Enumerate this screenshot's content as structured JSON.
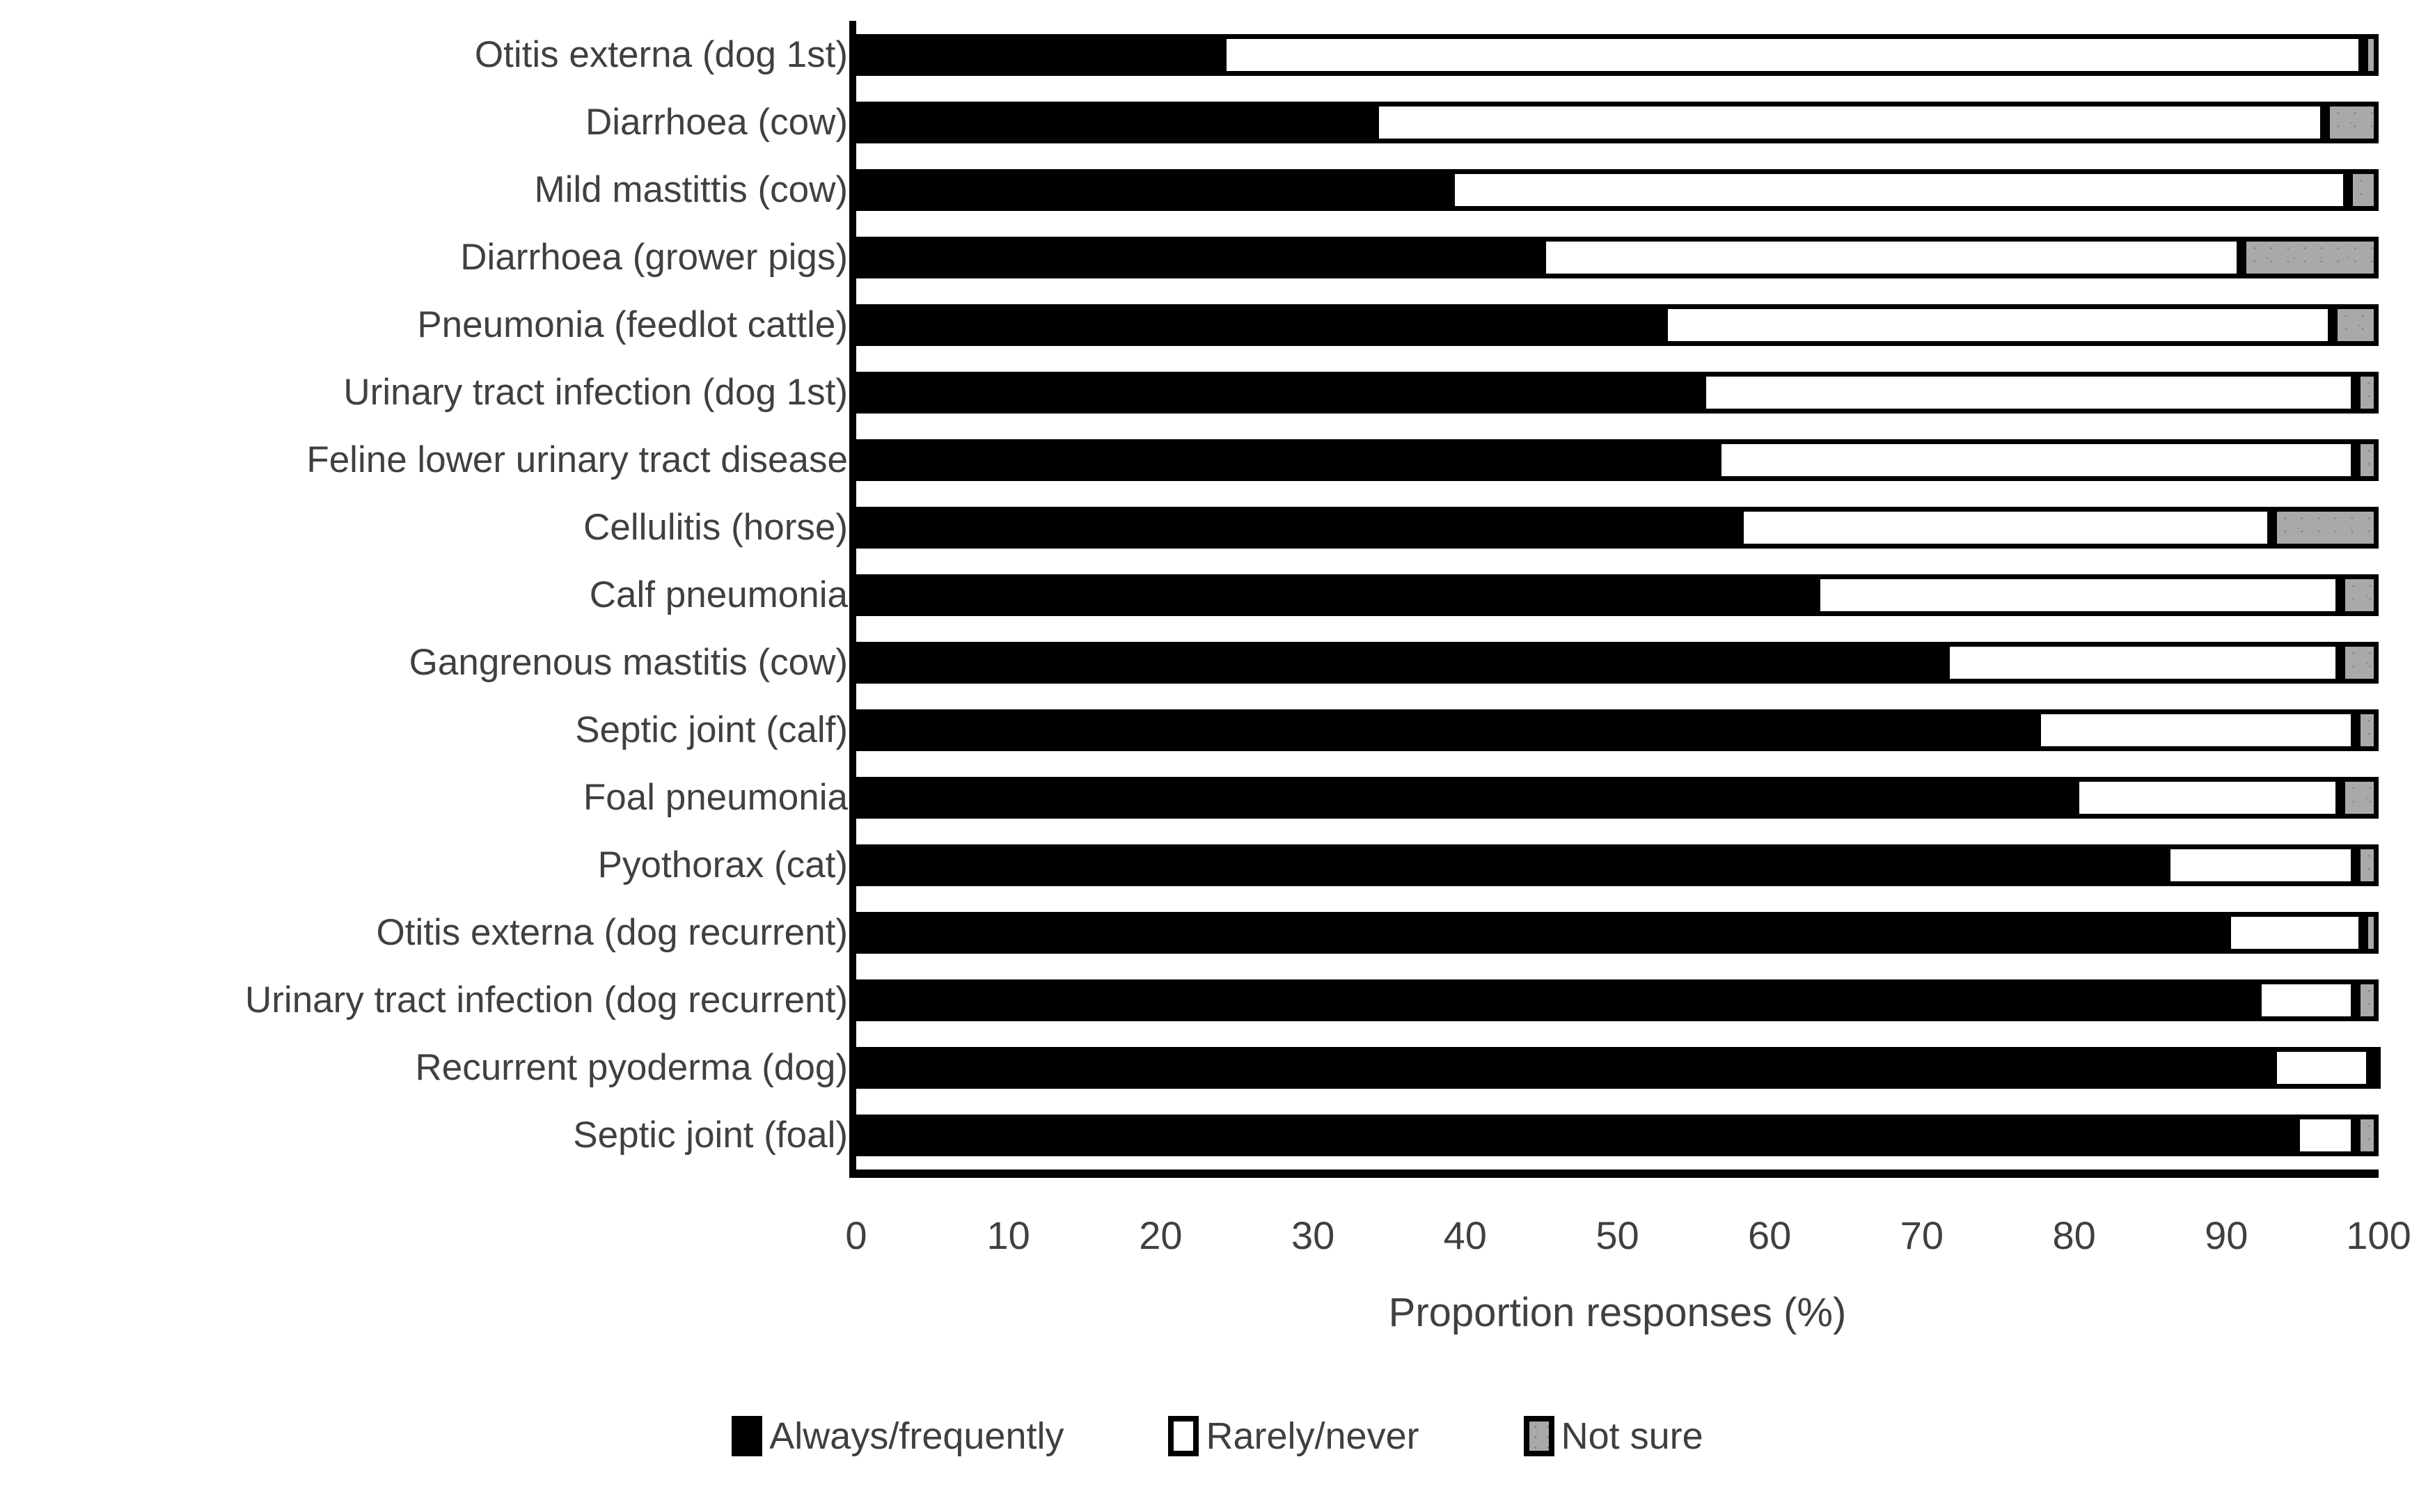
{
  "figure": {
    "background": "#ffffff",
    "text_color": "#3f3f3f"
  },
  "chart_data": {
    "type": "bar",
    "orientation": "horizontal",
    "stacked": true,
    "title": "",
    "xlabel": "Proportion responses (%)",
    "ylabel": "",
    "xlim": [
      0,
      100
    ],
    "x_ticks": [
      0,
      10,
      20,
      30,
      40,
      50,
      60,
      70,
      80,
      90,
      100
    ],
    "grid": false,
    "legend_position": "bottom",
    "categories": [
      "Otitis externa (dog 1st)",
      "Diarrhoea (cow)",
      "Mild mastittis (cow)",
      "Diarrhoea (grower pigs)",
      "Pneumonia (feedlot cattle)",
      "Urinary tract infection (dog 1st)",
      "Feline lower urinary tract disease",
      "Cellulitis (horse)",
      "Calf pneumonia",
      "Gangrenous mastitis (cow)",
      "Septic joint (calf)",
      "Foal pneumonia",
      "Pyothorax (cat)",
      "Otitis externa (dog recurrent)",
      "Urinary tract infection (dog recurrent)",
      "Recurrent pyoderma (dog)",
      "Septic joint (foal)"
    ],
    "series": [
      {
        "name": "Always/frequently",
        "color": "#000000",
        "values": [
          24,
          34,
          39,
          45,
          53,
          55.5,
          56.5,
          58,
          63,
          71.5,
          77.5,
          80,
          86,
          90,
          92,
          93,
          94.5
        ]
      },
      {
        "name": "Rarely/never",
        "color": "#ffffff",
        "values": [
          75,
          62.5,
          59,
          46,
          44,
          43,
          42,
          35,
          34.5,
          26,
          21,
          17.5,
          12.5,
          9,
          6.5,
          6.5,
          4
        ]
      },
      {
        "name": "Not sure",
        "color": "#a6a6a6",
        "values": [
          1,
          3.5,
          2,
          9,
          3,
          1.5,
          1.5,
          7,
          2.5,
          2.5,
          1.5,
          2.5,
          1.5,
          1,
          1.5,
          0.5,
          1.5
        ]
      }
    ]
  }
}
